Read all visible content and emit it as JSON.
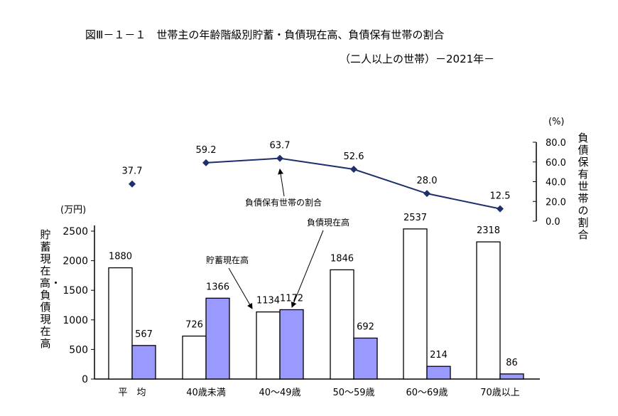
{
  "title_line1": "図Ⅲ－１－１　世帯主の年齢階級別貯蓄・負債現在高、負債保有世帯の割合",
  "title_line2": "（二人以上の世帯）－2021年－",
  "colors": {
    "savings": "#ffffff",
    "debt": "#9999ff",
    "line": "#1f2f6b",
    "axis": "#000000"
  },
  "chart_data": {
    "type": "bar+line",
    "categories": [
      "平　均",
      "40歳未満",
      "40～49歳",
      "50～59歳",
      "60～69歳",
      "70歳以上"
    ],
    "series": [
      {
        "name": "貯蓄現在高",
        "type": "bar",
        "axis": "left",
        "values": [
          1880,
          726,
          1134,
          1846,
          2537,
          2318
        ]
      },
      {
        "name": "負債現在高",
        "type": "bar",
        "axis": "left",
        "values": [
          567,
          1366,
          1172,
          692,
          214,
          86
        ]
      },
      {
        "name": "負債保有世帯の割合",
        "type": "line",
        "axis": "right",
        "values": [
          37.7,
          59.2,
          63.7,
          52.6,
          28.0,
          12.5
        ]
      }
    ],
    "left_axis": {
      "label": "貯蓄現在高・負債現在高",
      "unit": "(万円)",
      "ylim": [
        0,
        2500
      ],
      "ticks": [
        "0",
        "500",
        "1000",
        "1500",
        "2000",
        "2500"
      ]
    },
    "right_axis": {
      "label": "負債保有世帯の割合",
      "unit": "(%)",
      "ylim": [
        0,
        80
      ],
      "ticks": [
        "0.0",
        "20.0",
        "40.0",
        "60.0",
        "80.0"
      ]
    },
    "annotations": {
      "savings": "貯蓄現在高",
      "debt": "負債現在高",
      "ratio": "負債保有世帯の割合"
    },
    "grid": false
  }
}
